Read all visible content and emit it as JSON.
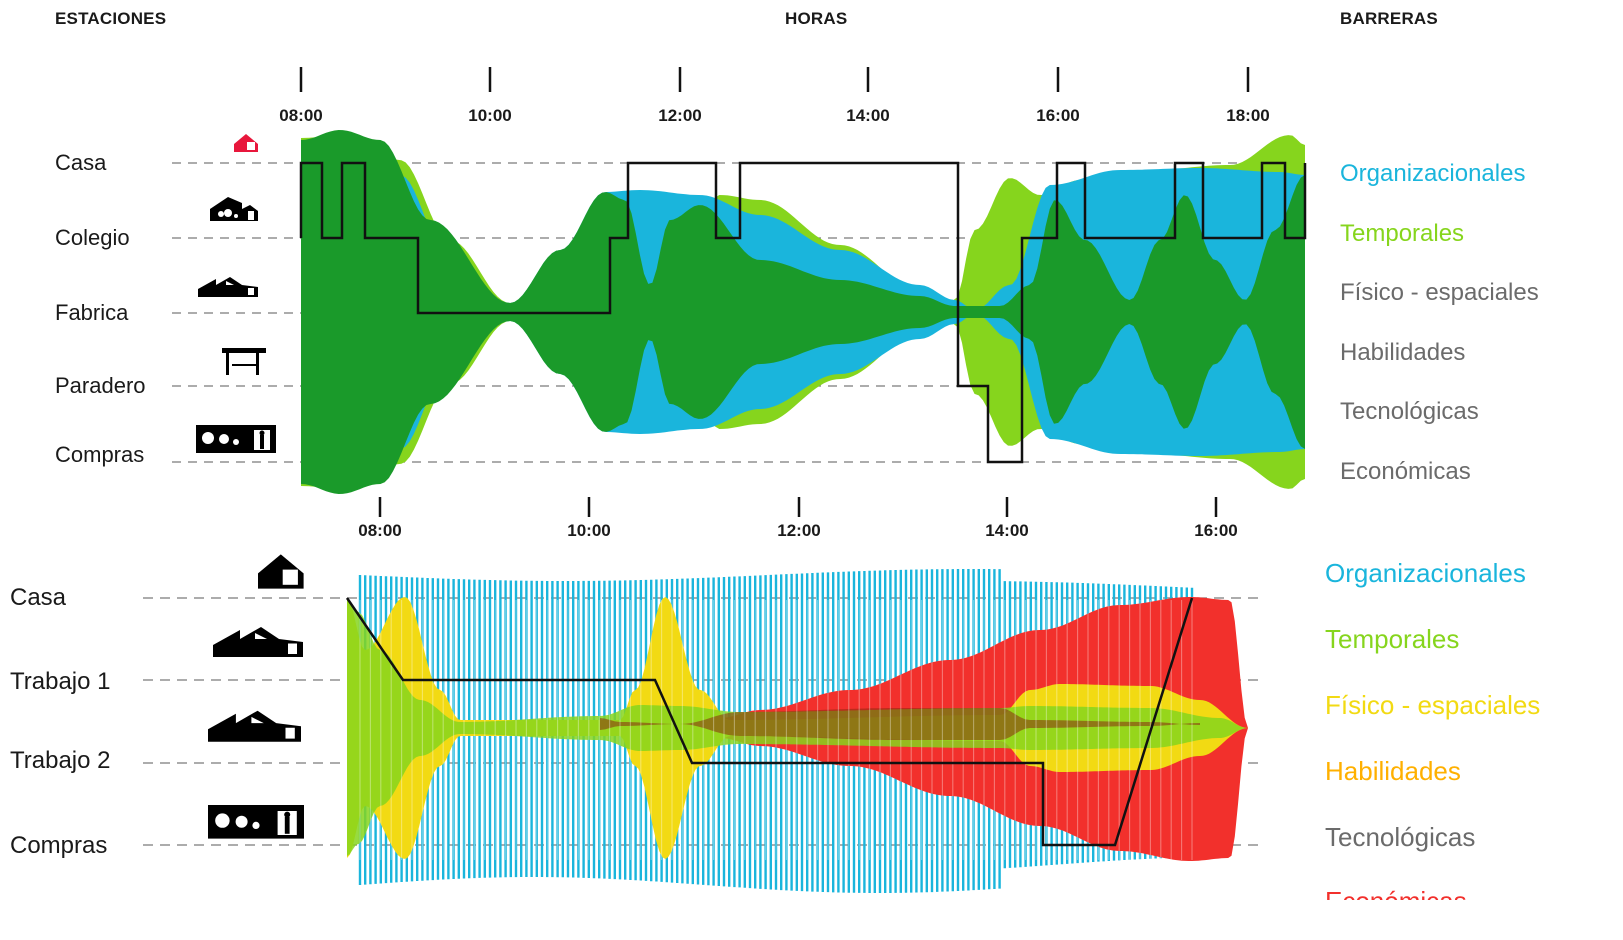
{
  "headers": {
    "stations": "ESTACIONES",
    "hours": "HORAS",
    "barriers": "BARRERAS"
  },
  "colors": {
    "organizacionales": "#1ab5dc",
    "temporales": "#86d51d",
    "fisico_espaciales": "#f2da13",
    "habilidades": "#ffb000",
    "tecnologicas": "#6b6b6b",
    "economicas": "#f2302c",
    "dark_green": "#1a9a2a",
    "home_icon_red": "#e8173c"
  },
  "chart_data": [
    {
      "type": "area",
      "time_ticks": [
        "08:00",
        "10:00",
        "12:00",
        "14:00",
        "16:00",
        "18:00"
      ],
      "bottom_ticks": [
        "08:00",
        "10:00",
        "12:00",
        "14:00",
        "16:00"
      ],
      "stations": [
        {
          "name": "Casa",
          "icon": "house-icon"
        },
        {
          "name": "Colegio",
          "icon": "school-icon"
        },
        {
          "name": "Fabrica",
          "icon": "factory-icon"
        },
        {
          "name": "Paradero",
          "icon": "bus-stop-icon"
        },
        {
          "name": "Compras",
          "icon": "shop-icon"
        }
      ],
      "barriers": [
        {
          "label": "Organizacionales",
          "color": "#1ab5dc"
        },
        {
          "label": "Temporales",
          "color": "#86d51d"
        },
        {
          "label": "Físico - espaciales",
          "color": "#6b6b6b"
        },
        {
          "label": "Habilidades",
          "color": "#6b6b6b"
        },
        {
          "label": "Tecnológicas",
          "color": "#6b6b6b"
        },
        {
          "label": "Económicas",
          "color": "#6b6b6b"
        }
      ]
    },
    {
      "type": "area",
      "time_ticks": [],
      "stations": [
        {
          "name": "Casa",
          "icon": "house-icon"
        },
        {
          "name": "Trabajo 1",
          "icon": "factory-icon"
        },
        {
          "name": "Trabajo 2",
          "icon": "factory-icon"
        },
        {
          "name": "Compras",
          "icon": "shop-icon"
        }
      ],
      "barriers": [
        {
          "label": "Organizacionales",
          "color": "#1ab5dc"
        },
        {
          "label": "Temporales",
          "color": "#86d51d"
        },
        {
          "label": "Físico - espaciales",
          "color": "#f2da13"
        },
        {
          "label": "Habilidades",
          "color": "#ffb000"
        },
        {
          "label": "Tecnológicas",
          "color": "#6b6b6b"
        },
        {
          "label": "Económicas",
          "color": "#f2302c"
        }
      ]
    }
  ]
}
